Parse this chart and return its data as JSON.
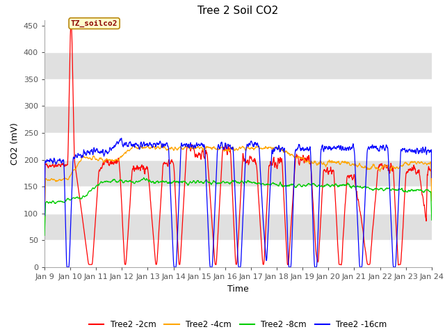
{
  "title": "Tree 2 Soil CO2",
  "xlabel": "Time",
  "ylabel": "CO2 (mV)",
  "ylim": [
    0,
    460
  ],
  "yticks": [
    0,
    50,
    100,
    150,
    200,
    250,
    300,
    350,
    400,
    450
  ],
  "x_labels": [
    "Jan 9",
    "Jan 10",
    "Jan 11",
    "Jan 12",
    "Jan 13",
    "Jan 14",
    "Jan 15",
    "Jan 16",
    "Jan 17",
    "Jan 18",
    "Jan 19",
    "Jan 20",
    "Jan 21",
    "Jan 22",
    "Jan 23",
    "Jan 24"
  ],
  "annotation_text": "TZ_soilco2",
  "line_colors": [
    "#ff0000",
    "#ffa500",
    "#00cc00",
    "#0000ff"
  ],
  "line_labels": [
    "Tree2 -2cm",
    "Tree2 -4cm",
    "Tree2 -8cm",
    "Tree2 -16cm"
  ],
  "background_color": "#ffffff",
  "band_color": "#e0e0e0",
  "title_fontsize": 11,
  "axis_fontsize": 9,
  "tick_fontsize": 8
}
